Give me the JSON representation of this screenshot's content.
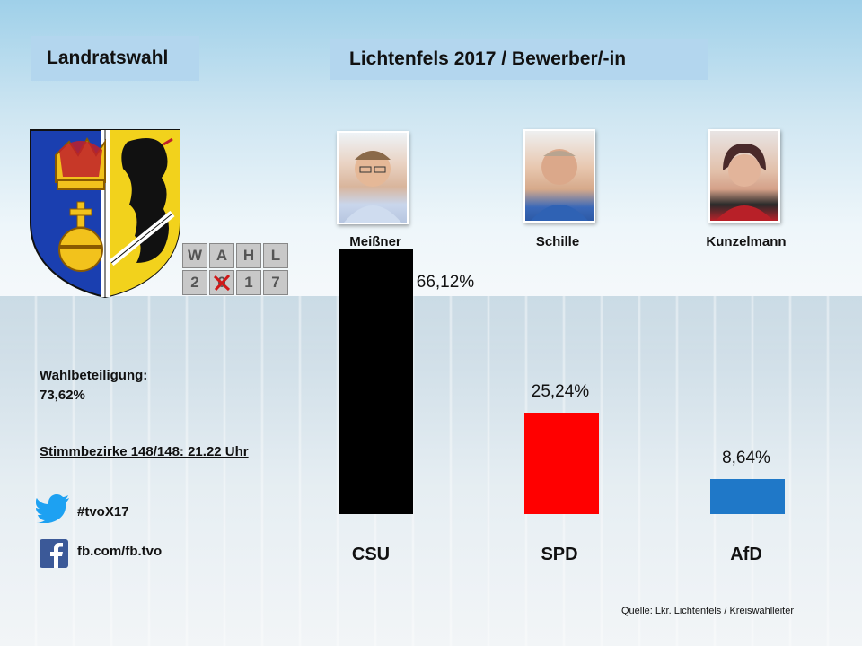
{
  "header": {
    "left_title": "Landratswahl",
    "right_title": "Lichtenfels 2017 / Bewerber/-in"
  },
  "logo": {
    "wahl_letters": [
      "W",
      "A",
      "H",
      "L"
    ],
    "year_digits": [
      "2",
      "0",
      "1",
      "7"
    ]
  },
  "info": {
    "turnout_label": "Wahlbeteiligung:",
    "turnout_value": "73,62%",
    "districts": "Stimmbezirke 148/148: 21.22 Uhr",
    "twitter": "#tvoX17",
    "facebook": "fb.com/fb.tvo"
  },
  "source": "Quelle: Lkr. Lichtenfels / Kreiswahlleiter",
  "chart_data": {
    "type": "bar",
    "title": "Lichtenfels 2017 / Bewerber/-in",
    "categories": [
      "CSU",
      "SPD",
      "AfD"
    ],
    "candidates": [
      "Meißner",
      "Schille",
      "Kunzelmann"
    ],
    "values": [
      66.12,
      25.24,
      8.64
    ],
    "value_labels": [
      "66,12%",
      "25,24%",
      "8,64%"
    ],
    "colors": [
      "#000000",
      "#ff0000",
      "#1f78c8"
    ],
    "ylim": [
      0,
      66.12
    ],
    "grid": false
  }
}
